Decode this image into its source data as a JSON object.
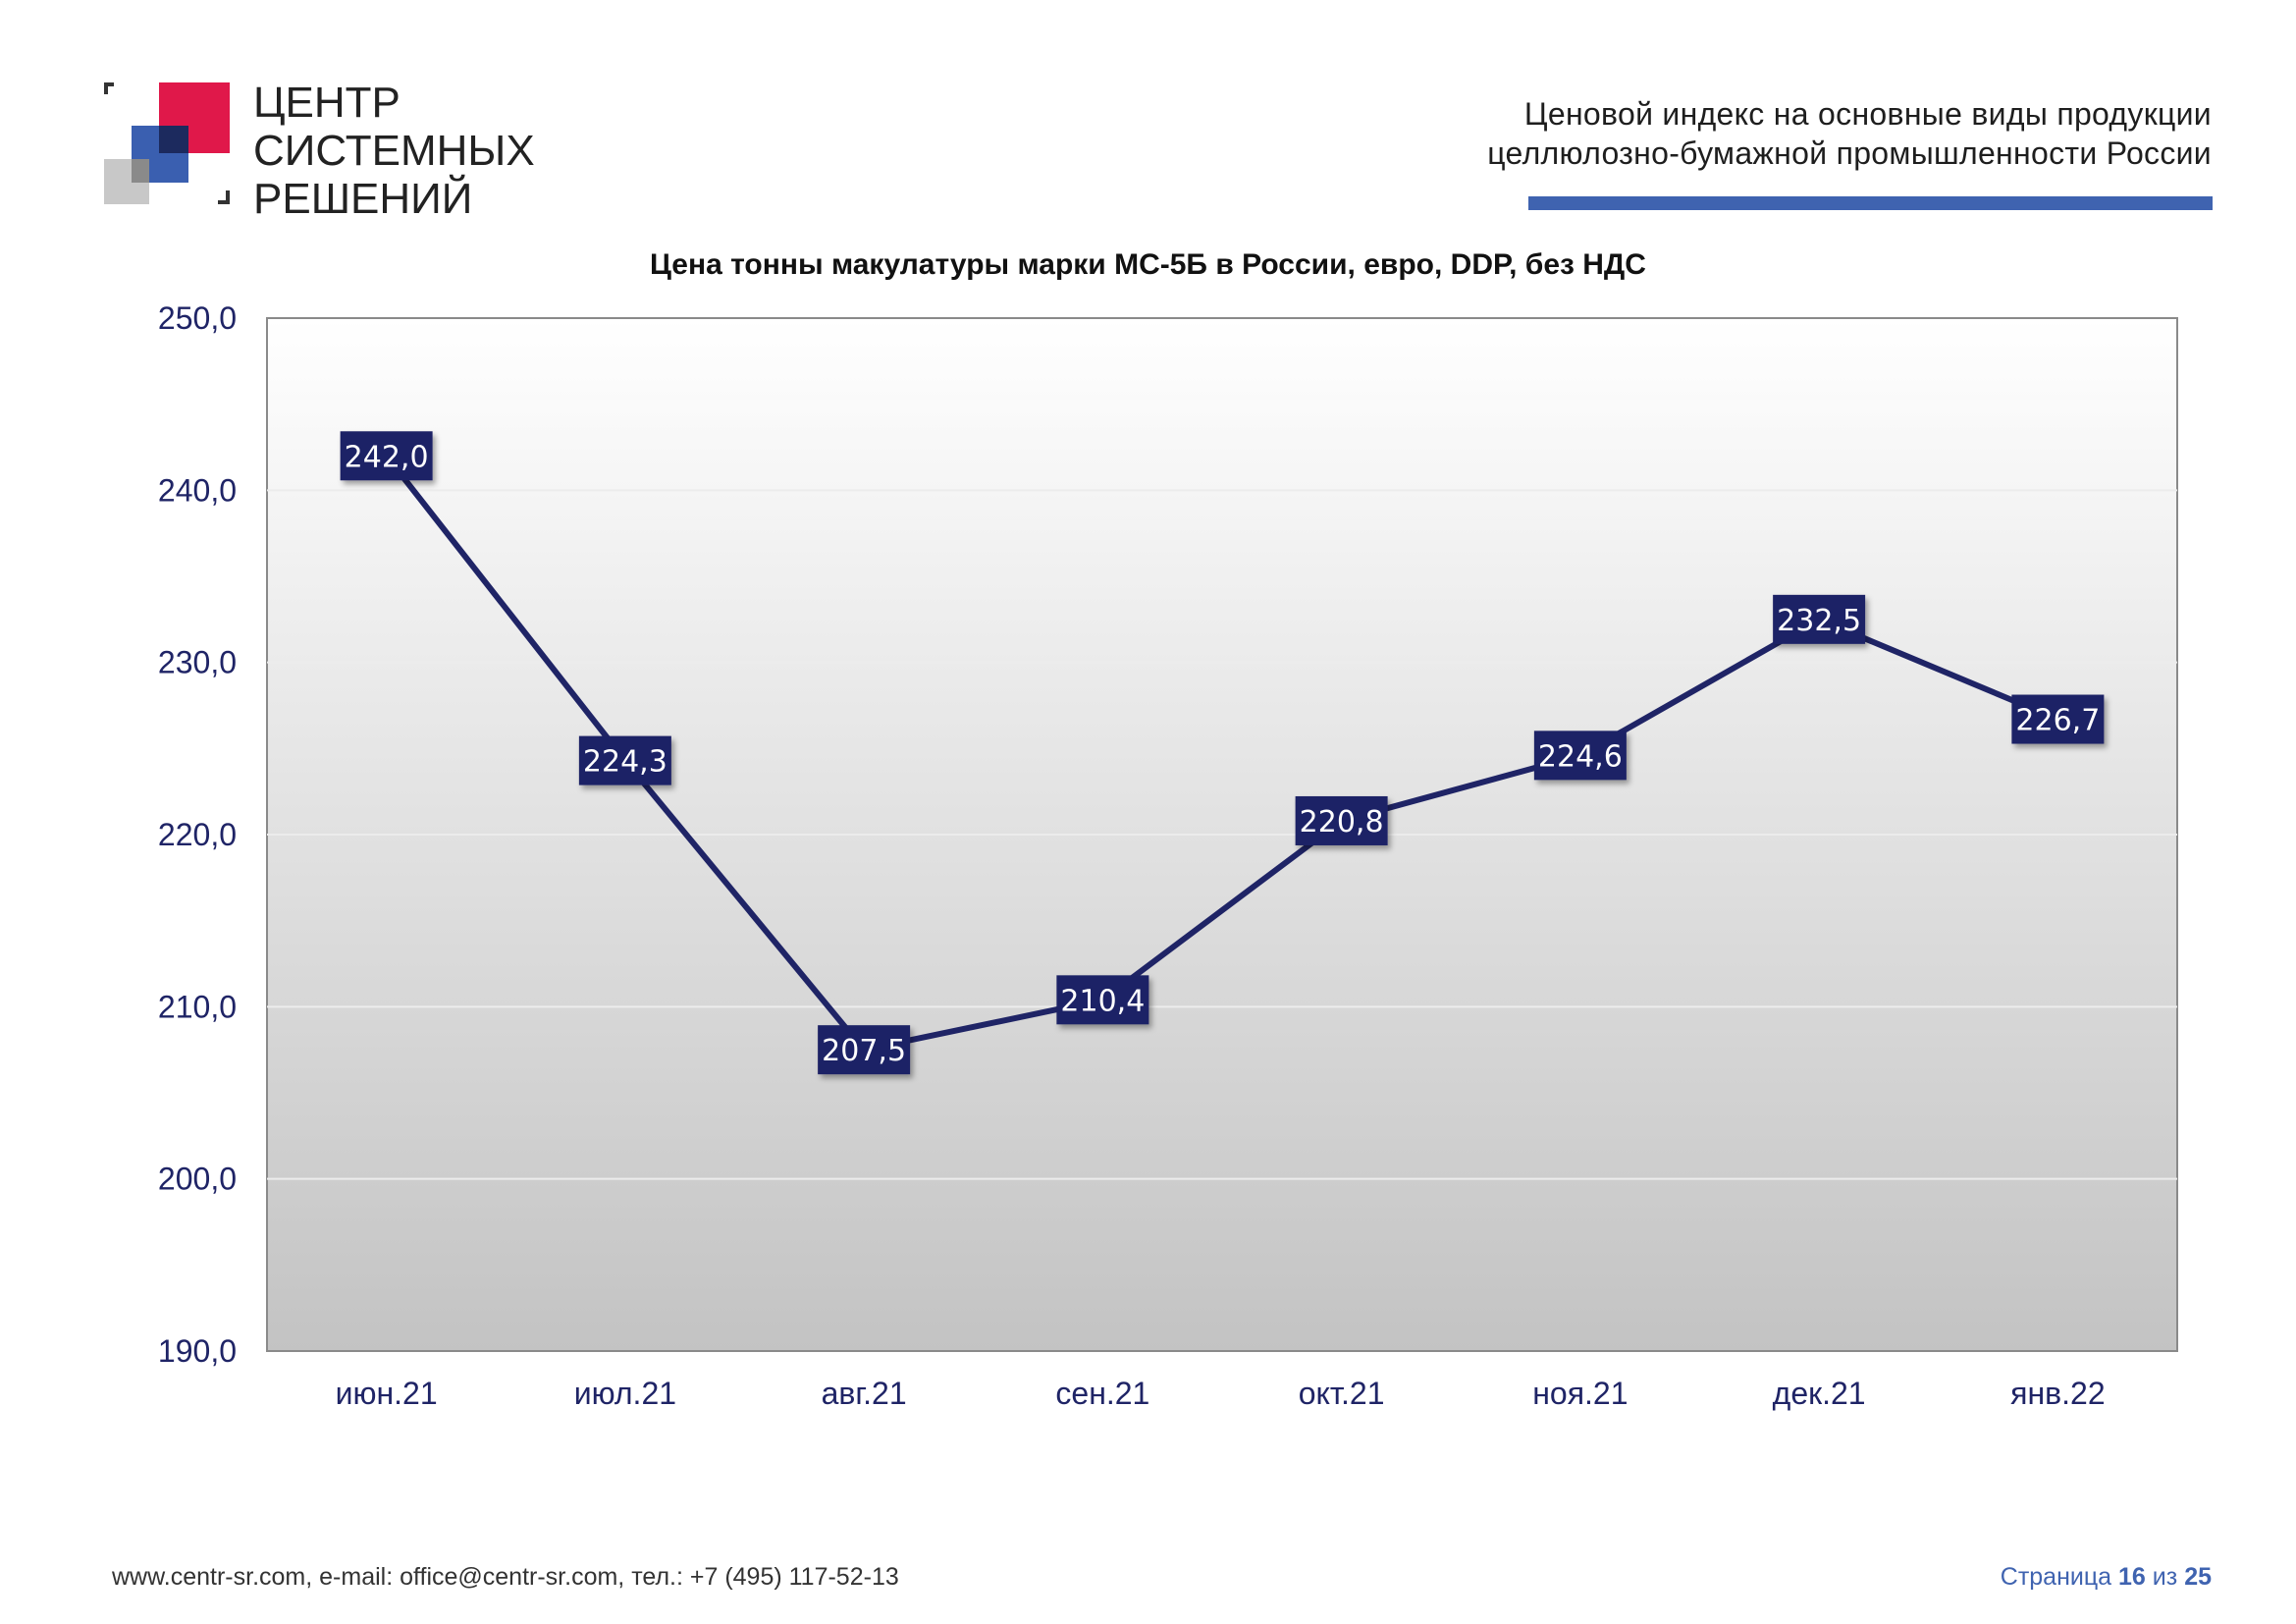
{
  "header": {
    "logo": {
      "lines": [
        "ЦЕНТР",
        "СИСТЕМНЫХ",
        "РЕШЕНИЙ"
      ],
      "colors": {
        "red": "#e0184a",
        "blue": "#3a5fb0",
        "navy": "#1c2a5e",
        "gray": "#c8c8c8",
        "dark_gray": "#8a8a8a"
      }
    },
    "title_line1": "Ценовой  индекс  на  основные виды продукции",
    "title_line2": "целлюлозно-бумажной промышленности России",
    "accent_color": "#3f63b0"
  },
  "chart_data": {
    "type": "line",
    "title": "Цена тонны макулатуры марки МС-5Б в России, евро, DDP, без НДС",
    "categories": [
      "июн.21",
      "июл.21",
      "авг.21",
      "сен.21",
      "окт.21",
      "ноя.21",
      "дек.21",
      "янв.22"
    ],
    "values": [
      242.0,
      224.3,
      207.5,
      210.4,
      220.8,
      224.6,
      232.5,
      226.7
    ],
    "value_labels": [
      "242,0",
      "224,3",
      "207,5",
      "210,4",
      "220,8",
      "224,6",
      "232,5",
      "226,7"
    ],
    "ylim": [
      190,
      250
    ],
    "yticks": [
      "190,0",
      "200,0",
      "210,0",
      "220,0",
      "230,0",
      "240,0",
      "250,0"
    ],
    "grid": true,
    "line_color": "#1f2466",
    "label_bg": "#1f2466",
    "label_color": "#ffffff",
    "tick_color": "#1f2466"
  },
  "footer": {
    "contacts": "www.centr-sr.com, e-mail: office@centr-sr.com, тел.: +7 (495) 117-52-13",
    "page_prefix": "Страница",
    "page_current": "16",
    "page_sep": "из",
    "page_total": "25"
  }
}
